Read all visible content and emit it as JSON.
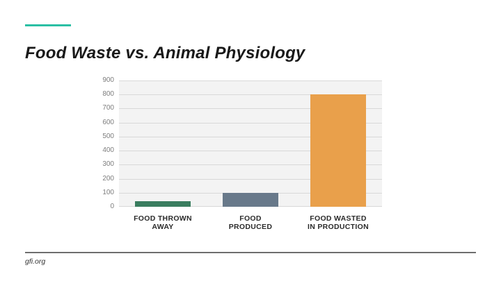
{
  "slide": {
    "title": "Food Waste vs. Animal Physiology",
    "accent_color": "#2bc0a4",
    "footer_text": "gfi.org",
    "footer_line_color": "#6e6e6e"
  },
  "chart_data": {
    "type": "bar",
    "title": "",
    "categories": [
      "FOOD THROWN\nAWAY",
      "FOOD\nPRODUCED",
      "FOOD WASTED\nIN PRODUCTION"
    ],
    "values": [
      40,
      100,
      800
    ],
    "bar_colors": [
      "#3a7d5f",
      "#68798a",
      "#e9a04b"
    ],
    "xlabel": "",
    "ylabel": "",
    "ylim": [
      0,
      900
    ],
    "yticks": [
      0,
      100,
      200,
      300,
      400,
      500,
      600,
      700,
      800,
      900
    ],
    "grid": true,
    "legend": false,
    "plot_bg_color": "#f3f3f3",
    "grid_color": "#d8d8d8",
    "tick_label_color": "#7d7d7d",
    "category_label_color": "#2b2b2b"
  }
}
